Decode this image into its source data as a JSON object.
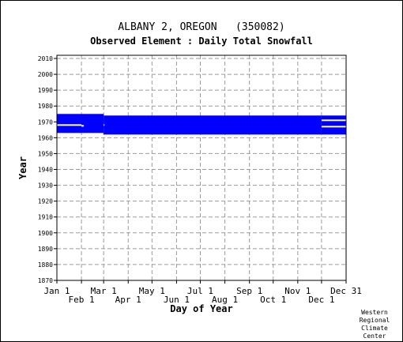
{
  "chart_data": {
    "type": "bar",
    "title": "ALBANY 2, OREGON   (350082)",
    "subtitle": "Observed Element : Daily Total Snowfall",
    "xlabel": "Day of Year",
    "ylabel": "Year",
    "ylim": [
      1870,
      2012
    ],
    "yticks": [
      2010,
      2000,
      1990,
      1980,
      1970,
      1960,
      1950,
      1940,
      1930,
      1920,
      1910,
      1900,
      1890,
      1880,
      1870
    ],
    "xlim": [
      1,
      366
    ],
    "xticks_top": [
      {
        "label": "Jan 1",
        "day": 1
      },
      {
        "label": "Mar 1",
        "day": 60
      },
      {
        "label": "May 1",
        "day": 121
      },
      {
        "label": "Jul 1",
        "day": 182
      },
      {
        "label": "Sep 1",
        "day": 244
      },
      {
        "label": "Nov 1",
        "day": 305
      },
      {
        "label": "Dec 31",
        "day": 366
      }
    ],
    "xticks_bottom": [
      {
        "label": "Feb 1",
        "day": 32
      },
      {
        "label": "Apr 1",
        "day": 91
      },
      {
        "label": "Jun 1",
        "day": 152
      },
      {
        "label": "Aug 1",
        "day": 213
      },
      {
        "label": "Oct 1",
        "day": 274
      },
      {
        "label": "Dec 1",
        "day": 335
      }
    ],
    "grid": true,
    "bar_color": "#0000ff",
    "records": [
      {
        "start_day": 1,
        "end_day": 60,
        "start_year": 1963,
        "end_year": 1975
      },
      {
        "start_day": 60,
        "end_day": 335,
        "start_year": 1962,
        "end_year": 1974
      },
      {
        "start_day": 335,
        "end_day": 366,
        "start_year": 1962,
        "end_year": 1974
      }
    ],
    "gaps": [
      {
        "start_day": 1,
        "end_day": 32,
        "year": 1968
      },
      {
        "start_day": 32,
        "end_day": 35,
        "year": 1967.5
      },
      {
        "start_day": 60,
        "end_day": 60,
        "year": 1968
      },
      {
        "start_day": 335,
        "end_day": 366,
        "year": 1967
      },
      {
        "start_day": 335,
        "end_day": 366,
        "year": 1971
      }
    ]
  },
  "credit": [
    "Western",
    "Regional",
    "Climate",
    "Center"
  ]
}
